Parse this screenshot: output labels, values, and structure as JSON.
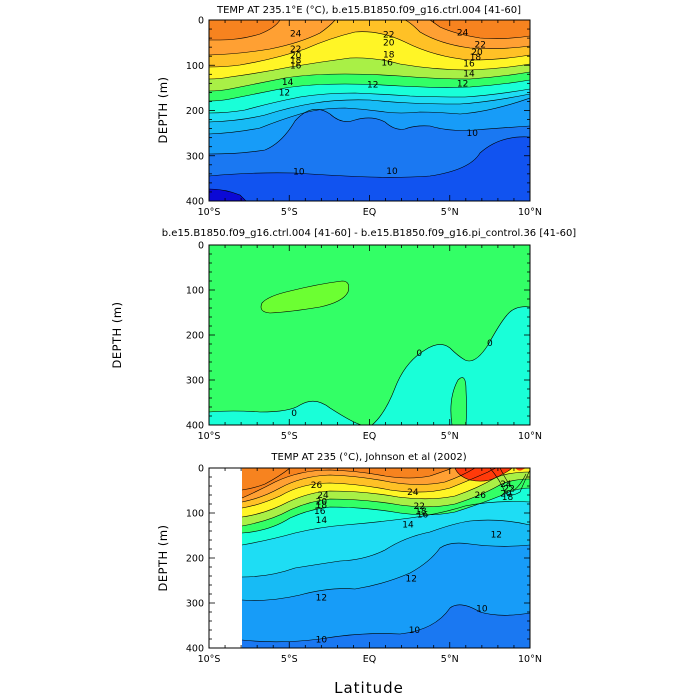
{
  "colors": {
    "warm_1": "#ff3a0a",
    "warm_2": "#f7831f",
    "warm_3": "#ffa033",
    "warm_4": "#ffc126",
    "yellow": "#fff526",
    "green_yellow": "#a9f046",
    "green": "#33ff66",
    "light_green": "#6cff32",
    "aqua_1": "#19ffd8",
    "cyan_1": "#1eddf4",
    "cyan_2": "#17bbf5",
    "blue_1": "#179cf8",
    "blue_2": "#1a78f2",
    "blue_3": "#1153f0",
    "deep_blue": "#0b09d6",
    "contour_line": "#000000",
    "frame": "#000000"
  },
  "chart_data": [
    {
      "type": "contour",
      "title": "TEMP AT 235.1°E (°C), b.e15.B1850.f09_g16.ctrl.004 [41-60]",
      "xlabel": "",
      "ylabel": "DEPTH (m)",
      "xlim": [
        -10,
        10
      ],
      "ylim": [
        400,
        0
      ],
      "x_ticks": [
        "10°S",
        "5°S",
        "EQ",
        "5°N",
        "10°N"
      ],
      "y_ticks": [
        "0",
        "100",
        "200",
        "300",
        "400"
      ],
      "contour_labels": [
        {
          "text": "24",
          "x": -4.6,
          "y": 30
        },
        {
          "text": "22",
          "x": -4.6,
          "y": 64
        },
        {
          "text": "20",
          "x": -4.6,
          "y": 78
        },
        {
          "text": "18",
          "x": -4.6,
          "y": 90
        },
        {
          "text": "16",
          "x": -4.6,
          "y": 100
        },
        {
          "text": "14",
          "x": -5.1,
          "y": 137
        },
        {
          "text": "12",
          "x": -5.3,
          "y": 160
        },
        {
          "text": "22",
          "x": 1.2,
          "y": 32
        },
        {
          "text": "20",
          "x": 1.2,
          "y": 50
        },
        {
          "text": "18",
          "x": 1.2,
          "y": 76
        },
        {
          "text": "16",
          "x": 1.1,
          "y": 94
        },
        {
          "text": "12",
          "x": 0.2,
          "y": 143
        },
        {
          "text": "24",
          "x": 5.8,
          "y": 28
        },
        {
          "text": "22",
          "x": 6.9,
          "y": 54
        },
        {
          "text": "20",
          "x": 6.7,
          "y": 71
        },
        {
          "text": "18",
          "x": 6.6,
          "y": 82
        },
        {
          "text": "16",
          "x": 6.2,
          "y": 96
        },
        {
          "text": "14",
          "x": 6.2,
          "y": 118
        },
        {
          "text": "12",
          "x": 5.8,
          "y": 140
        },
        {
          "text": "10",
          "x": -4.4,
          "y": 335
        },
        {
          "text": "10",
          "x": 1.4,
          "y": 334
        },
        {
          "text": "10",
          "x": 6.4,
          "y": 250
        }
      ]
    },
    {
      "type": "contour",
      "title": "b.e15.B1850.f09_g16.ctrl.004 [41-60] - b.e15.B1850.f09_g16.pi_control.36 [41-60]",
      "xlabel": "",
      "ylabel": "DEPTH (m)",
      "xlim": [
        -10,
        10
      ],
      "ylim": [
        400,
        0
      ],
      "x_ticks": [
        "10°S",
        "5°S",
        "EQ",
        "5°N",
        "10°N"
      ],
      "y_ticks": [
        "0",
        "100",
        "200",
        "300",
        "400"
      ],
      "contour_labels": [
        {
          "text": "0",
          "x": -4.7,
          "y": 373
        },
        {
          "text": "0",
          "x": 3.1,
          "y": 240
        },
        {
          "text": "0",
          "x": 7.5,
          "y": 218
        }
      ]
    },
    {
      "type": "contour",
      "title": "TEMP AT 235 (°C), Johnson et al (2002)",
      "xlabel": "Latitude",
      "ylabel": "DEPTH (m)",
      "xlim": [
        -10,
        10
      ],
      "ylim": [
        400,
        0
      ],
      "x_ticks": [
        "10°S",
        "5°S",
        "EQ",
        "5°N",
        "10°N"
      ],
      "y_ticks": [
        "0",
        "100",
        "200",
        "300",
        "400"
      ],
      "contour_labels": [
        {
          "text": "26",
          "x": -3.3,
          "y": 38
        },
        {
          "text": "24",
          "x": -2.9,
          "y": 60
        },
        {
          "text": "20",
          "x": -3.0,
          "y": 74
        },
        {
          "text": "18",
          "x": -3.0,
          "y": 82
        },
        {
          "text": "16",
          "x": -3.1,
          "y": 95
        },
        {
          "text": "14",
          "x": -3.0,
          "y": 115
        },
        {
          "text": "24",
          "x": 2.7,
          "y": 53
        },
        {
          "text": "22",
          "x": 3.1,
          "y": 84
        },
        {
          "text": "18",
          "x": 3.2,
          "y": 95
        },
        {
          "text": "16",
          "x": 3.3,
          "y": 103
        },
        {
          "text": "14",
          "x": 2.4,
          "y": 125
        },
        {
          "text": "26",
          "x": 6.9,
          "y": 60
        },
        {
          "text": "24",
          "x": 8.5,
          "y": 35
        },
        {
          "text": "22",
          "x": 8.7,
          "y": 46
        },
        {
          "text": "20",
          "x": 8.5,
          "y": 57
        },
        {
          "text": "18",
          "x": 8.6,
          "y": 64
        },
        {
          "text": "12",
          "x": 7.9,
          "y": 148
        },
        {
          "text": "12",
          "x": 2.6,
          "y": 245
        },
        {
          "text": "12",
          "x": -3.0,
          "y": 288
        },
        {
          "text": "10",
          "x": 7.0,
          "y": 312
        },
        {
          "text": "10",
          "x": 2.8,
          "y": 360
        },
        {
          "text": "10",
          "x": -3.0,
          "y": 381
        }
      ]
    }
  ]
}
